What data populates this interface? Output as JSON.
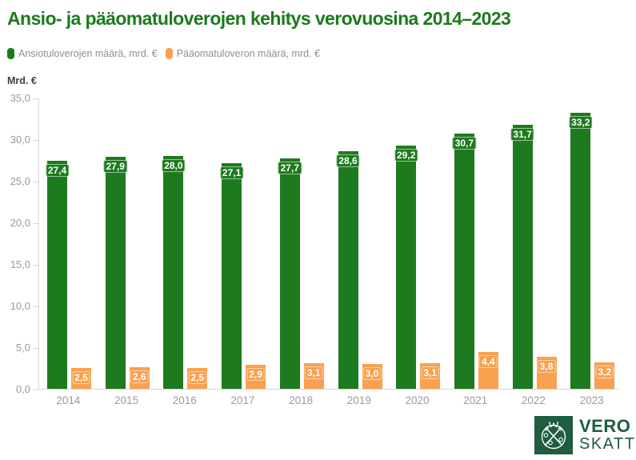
{
  "title": "Ansio- ja pääomatuloverojen kehitys verovuosina 2014–2023",
  "y_axis_title": "Mrd. €",
  "colors": {
    "title_green": "#1c7a1c",
    "bar_green": "#1e7a1e",
    "bar_orange": "#f9a14e",
    "logo_green": "#1f5c40",
    "axis_gray": "#d9d9d9",
    "label_gray": "#9b9b9b"
  },
  "legend": [
    {
      "label": "Ansiotuloverojen määrä, mrd. €",
      "color": "#1e7a1e"
    },
    {
      "label": "Pääomatuloveron määrä, mrd. €",
      "color": "#f9a14e"
    }
  ],
  "logo": {
    "line1": "VERO",
    "line2": "SKATT"
  },
  "chart_data": {
    "type": "bar",
    "title": "Ansio- ja pääomatuloverojen kehitys verovuosina 2014–2023",
    "xlabel": "",
    "ylabel": "Mrd. €",
    "ylim": [
      0,
      35
    ],
    "grid": false,
    "legend_position": "top-left",
    "categories": [
      "2014",
      "2015",
      "2016",
      "2017",
      "2018",
      "2019",
      "2020",
      "2021",
      "2022",
      "2023"
    ],
    "yticks": [
      "35,0",
      "30,0",
      "25,0",
      "20,0",
      "15,0",
      "10,0",
      "5,0",
      "0,0"
    ],
    "series": [
      {
        "name": "Ansiotuloverojen määrä, mrd. €",
        "color": "#1e7a1e",
        "values": [
          27.4,
          27.9,
          28.0,
          27.1,
          27.7,
          28.6,
          29.2,
          30.7,
          31.7,
          33.2
        ],
        "labels": [
          "27,4",
          "27,9",
          "28,0",
          "27,1",
          "27,7",
          "28,6",
          "29,2",
          "30,7",
          "31,7",
          "33,2"
        ]
      },
      {
        "name": "Pääomatuloveron määrä, mrd. €",
        "color": "#f9a14e",
        "values": [
          2.5,
          2.6,
          2.5,
          2.9,
          3.1,
          3.0,
          3.1,
          4.4,
          3.8,
          3.2
        ],
        "labels": [
          "2,5",
          "2,6",
          "2,5",
          "2,9",
          "3,1",
          "3,0",
          "3,1",
          "4,4",
          "3,8",
          "3,2"
        ]
      }
    ]
  }
}
